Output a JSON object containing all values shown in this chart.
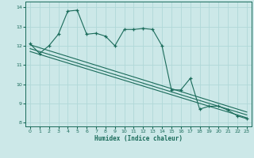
{
  "xlabel": "Humidex (Indice chaleur)",
  "xlim": [
    -0.5,
    23.5
  ],
  "ylim": [
    7.8,
    14.3
  ],
  "yticks": [
    8,
    9,
    10,
    11,
    12,
    13,
    14
  ],
  "xticks": [
    0,
    1,
    2,
    3,
    4,
    5,
    6,
    7,
    8,
    9,
    10,
    11,
    12,
    13,
    14,
    15,
    16,
    17,
    18,
    19,
    20,
    21,
    22,
    23
  ],
  "bg_color": "#cce8e8",
  "grid_color": "#b0d8d8",
  "line_color": "#1a6b5a",
  "curve1_x": [
    0,
    1,
    2,
    3,
    4,
    5,
    6,
    7,
    8,
    9,
    10,
    11,
    12,
    13,
    14,
    15,
    16,
    17,
    18,
    19,
    20,
    21,
    22,
    23
  ],
  "curve1_y": [
    12.1,
    11.6,
    12.0,
    12.6,
    13.8,
    13.85,
    12.6,
    12.65,
    12.5,
    12.0,
    12.85,
    12.85,
    12.9,
    12.85,
    12.0,
    9.7,
    9.7,
    10.3,
    8.7,
    8.85,
    8.85,
    8.65,
    8.35,
    8.2
  ],
  "trend1_x": [
    0,
    23
  ],
  "trend1_y": [
    12.05,
    8.55
  ],
  "trend2_x": [
    0,
    23
  ],
  "trend2_y": [
    11.85,
    8.4
  ],
  "trend3_x": [
    0,
    23
  ],
  "trend3_y": [
    11.7,
    8.25
  ]
}
